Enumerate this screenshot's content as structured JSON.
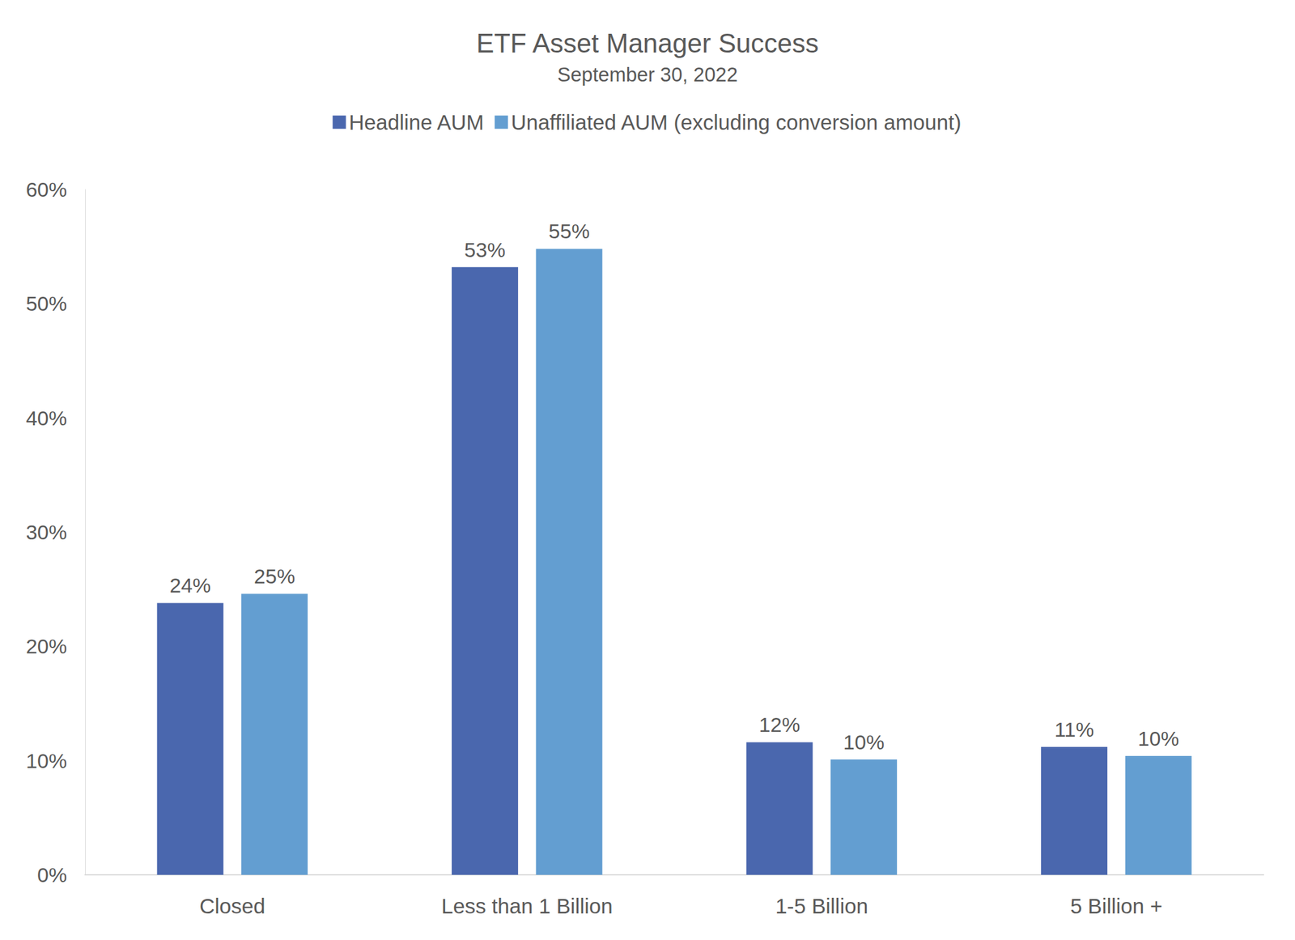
{
  "chart_data": {
    "type": "bar",
    "title": "ETF Asset Manager Success",
    "subtitle": "September 30, 2022",
    "categories": [
      "Closed",
      "Less than 1 Billion",
      "1-5 Billion",
      "5 Billion +"
    ],
    "series": [
      {
        "name": "Headline AUM",
        "color": "#4a67ae",
        "values": [
          23.8,
          53.2,
          11.6,
          11.2
        ],
        "value_labels": [
          "24%",
          "53%",
          "12%",
          "11%"
        ]
      },
      {
        "name": "Unaffiliated AUM (excluding conversion amount)",
        "color": "#639ed1",
        "values": [
          24.6,
          54.8,
          10.1,
          10.4
        ],
        "value_labels": [
          "25%",
          "55%",
          "10%",
          "10%"
        ]
      }
    ],
    "ylim": [
      0,
      60
    ],
    "yticks": [
      {
        "value": 0,
        "label": "0%"
      },
      {
        "value": 10,
        "label": "10%"
      },
      {
        "value": 20,
        "label": "20%"
      },
      {
        "value": 30,
        "label": "30%"
      },
      {
        "value": 40,
        "label": "40%"
      },
      {
        "value": 50,
        "label": "50%"
      },
      {
        "value": 60,
        "label": "60%"
      }
    ],
    "grid": false,
    "legend": "top",
    "data_labels": true
  }
}
